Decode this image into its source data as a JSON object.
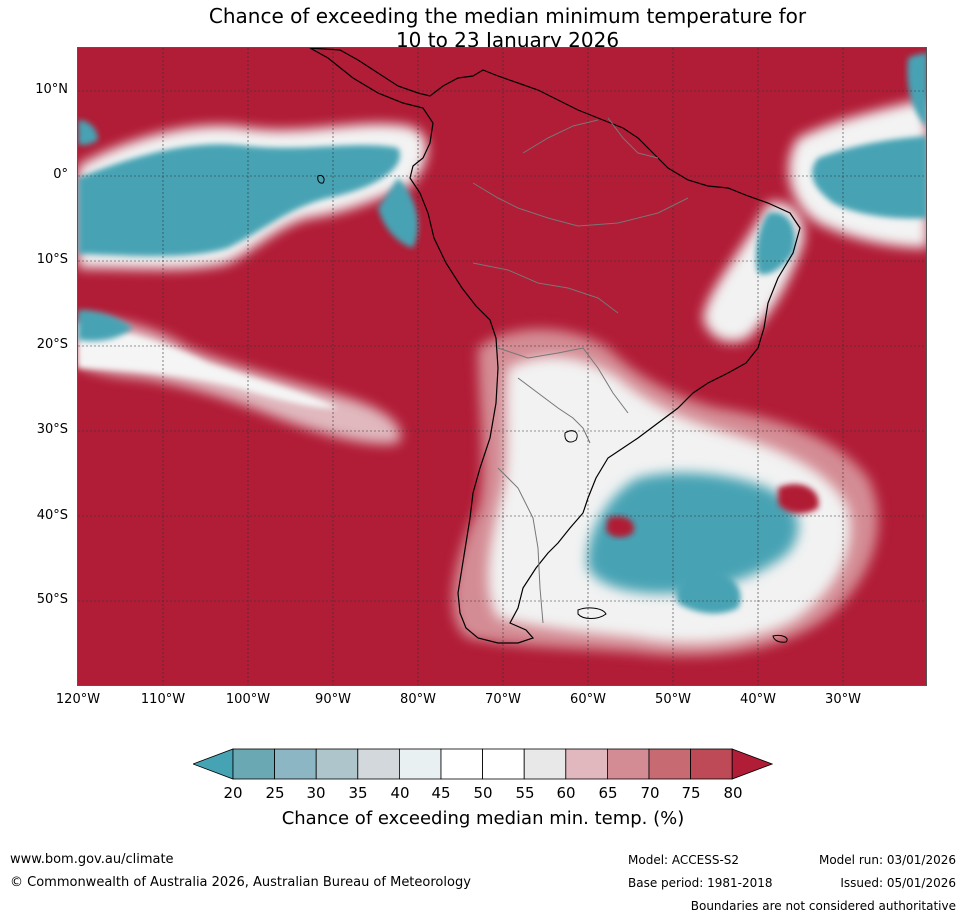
{
  "title": {
    "line1": "Chance of exceeding the median minimum temperature for",
    "line2": "10 to 23 January 2026"
  },
  "map": {
    "lat_labels": [
      "10°N",
      "0°",
      "10°S",
      "20°S",
      "30°S",
      "40°S",
      "50°S"
    ],
    "lon_labels": [
      "120°W",
      "110°W",
      "100°W",
      "90°W",
      "80°W",
      "70°W",
      "60°W",
      "50°W",
      "40°W",
      "30°W"
    ]
  },
  "colorbar": {
    "ticks": [
      "20",
      "25",
      "30",
      "35",
      "40",
      "45",
      "50",
      "55",
      "60",
      "65",
      "70",
      "75",
      "80"
    ],
    "colors": [
      "#46a3b4",
      "#6aa8b4",
      "#8cb6c4",
      "#aec6cb",
      "#d2d8db",
      "#e8f0f2",
      "#ffffff",
      "#ffffff",
      "#e8e8e8",
      "#e0b8be",
      "#d48c94",
      "#c86a72",
      "#be4a58",
      "#b11c36"
    ],
    "label": "Chance of exceeding median min. temp. (%)"
  },
  "footer": {
    "url": "www.bom.gov.au/climate",
    "copyright": "© Commonwealth of Australia 2026, Australian Bureau of Meteorology",
    "model": "Model: ACCESS-S2",
    "base_period": "Base period: 1981-2018",
    "model_run": "Model run: 03/01/2026",
    "issued": "Issued: 05/01/2026",
    "disclaimer": "Boundaries are not considered authoritative"
  }
}
